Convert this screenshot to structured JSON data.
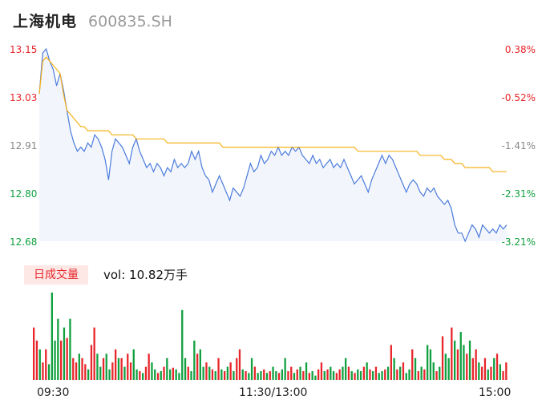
{
  "stock": {
    "name": "上海机电",
    "code": "600835.SH"
  },
  "price_axis": {
    "left_labels": [
      "13.15",
      "13.03",
      "12.91",
      "12.80",
      "12.68"
    ],
    "right_labels": [
      "0.38%",
      "-0.52%",
      "-1.41%",
      "-2.31%",
      "-3.21%"
    ],
    "label_colors": [
      "up",
      "up",
      "flat",
      "down",
      "down"
    ]
  },
  "volume": {
    "tab_label": "日成交量",
    "text": "vol: 10.82万手"
  },
  "time_axis": [
    "09:30",
    "11:30/13:00",
    "15:00"
  ],
  "colors": {
    "price_line": "#4a7bdc",
    "avg_line": "#f5b21b",
    "up": "#e8262b",
    "down": "#11a040",
    "area_fill": "#f2f5fc"
  },
  "chart_data": {
    "type": "line",
    "ylim": [
      12.68,
      13.15
    ],
    "series": [
      {
        "values": [
          13.04,
          13.14,
          13.15,
          13.12,
          13.1,
          13.06,
          13.09,
          13.05,
          13.0,
          12.95,
          12.92,
          12.9,
          12.91,
          12.9,
          12.92,
          12.91,
          12.94,
          12.93,
          12.91,
          12.88,
          12.83,
          12.9,
          12.93,
          12.92,
          12.91,
          12.89,
          12.87,
          12.91,
          12.93,
          12.9,
          12.88,
          12.86,
          12.87,
          12.85,
          12.87,
          12.86,
          12.84,
          12.86,
          12.85,
          12.88,
          12.86,
          12.87,
          12.86,
          12.87,
          12.9,
          12.88,
          12.9,
          12.86,
          12.84,
          12.83,
          12.8,
          12.82,
          12.84,
          12.82,
          12.8,
          12.78,
          12.81,
          12.8,
          12.79,
          12.81,
          12.84,
          12.87,
          12.85,
          12.86,
          12.89,
          12.87,
          12.88,
          12.9,
          12.89,
          12.91,
          12.89,
          12.9,
          12.89,
          12.91,
          12.9,
          12.91,
          12.89,
          12.88,
          12.87,
          12.89,
          12.87,
          12.88,
          12.86,
          12.87,
          12.88,
          12.86,
          12.87,
          12.86,
          12.88,
          12.86,
          12.84,
          12.82,
          12.83,
          12.84,
          12.82,
          12.8,
          12.83,
          12.85,
          12.87,
          12.89,
          12.87,
          12.89,
          12.88,
          12.86,
          12.84,
          12.82,
          12.8,
          12.82,
          12.83,
          12.82,
          12.8,
          12.79,
          12.81,
          12.8,
          12.81,
          12.79,
          12.78,
          12.77,
          12.78,
          12.76,
          12.72,
          12.7,
          12.7,
          12.68,
          12.7,
          12.72,
          12.71,
          12.69,
          12.72,
          12.71,
          12.7,
          12.71,
          12.7,
          12.72,
          12.71,
          12.72
        ]
      },
      {
        "values": [
          13.04,
          13.12,
          13.13,
          13.12,
          13.11,
          13.1,
          13.09,
          13.04,
          13.0,
          12.99,
          12.98,
          12.97,
          12.96,
          12.96,
          12.95,
          12.95,
          12.95,
          12.95,
          12.95,
          12.95,
          12.95,
          12.94,
          12.94,
          12.94,
          12.94,
          12.94,
          12.94,
          12.94,
          12.93,
          12.93,
          12.93,
          12.93,
          12.93,
          12.93,
          12.93,
          12.93,
          12.93,
          12.92,
          12.92,
          12.92,
          12.92,
          12.92,
          12.92,
          12.92,
          12.92,
          12.92,
          12.92,
          12.92,
          12.92,
          12.92,
          12.92,
          12.92,
          12.92,
          12.91,
          12.91,
          12.91,
          12.91,
          12.91,
          12.91,
          12.91,
          12.91,
          12.91,
          12.91,
          12.91,
          12.91,
          12.91,
          12.91,
          12.91,
          12.91,
          12.91,
          12.91,
          12.91,
          12.91,
          12.91,
          12.91,
          12.91,
          12.91,
          12.91,
          12.91,
          12.91,
          12.91,
          12.91,
          12.91,
          12.91,
          12.91,
          12.91,
          12.91,
          12.91,
          12.91,
          12.91,
          12.91,
          12.91,
          12.9,
          12.9,
          12.9,
          12.9,
          12.9,
          12.9,
          12.9,
          12.9,
          12.9,
          12.9,
          12.9,
          12.9,
          12.9,
          12.9,
          12.9,
          12.9,
          12.9,
          12.9,
          12.89,
          12.89,
          12.89,
          12.89,
          12.89,
          12.89,
          12.89,
          12.88,
          12.88,
          12.88,
          12.87,
          12.87,
          12.87,
          12.86,
          12.86,
          12.86,
          12.86,
          12.86,
          12.86,
          12.86,
          12.86,
          12.85,
          12.85,
          12.85,
          12.85,
          12.85
        ]
      }
    ],
    "volume": {
      "values": [
        60,
        45,
        35,
        20,
        35,
        18,
        100,
        45,
        70,
        45,
        60,
        48,
        70,
        25,
        20,
        30,
        25,
        18,
        12,
        40,
        60,
        30,
        15,
        25,
        30,
        12,
        20,
        35,
        25,
        25,
        15,
        30,
        20,
        35,
        12,
        10,
        8,
        15,
        30,
        20,
        12,
        8,
        10,
        15,
        25,
        12,
        14,
        12,
        8,
        80,
        25,
        15,
        10,
        45,
        30,
        35,
        15,
        20,
        15,
        12,
        10,
        25,
        12,
        10,
        15,
        20,
        10,
        25,
        35,
        12,
        10,
        8,
        25,
        15,
        8,
        10,
        12,
        8,
        10,
        15,
        10,
        8,
        12,
        25,
        10,
        15,
        8,
        12,
        15,
        10,
        20,
        8,
        10,
        5,
        12,
        20,
        10,
        12,
        15,
        10,
        8,
        12,
        15,
        25,
        15,
        10,
        8,
        12,
        10,
        15,
        20,
        12,
        10,
        15,
        8,
        10,
        12,
        15,
        40,
        25,
        12,
        15,
        20,
        8,
        12,
        35,
        25,
        10,
        15,
        12,
        40,
        35,
        20,
        10,
        15,
        50,
        30,
        25,
        60,
        45,
        35,
        55,
        40,
        30,
        45,
        25,
        35,
        20,
        15,
        25,
        12,
        15,
        25,
        30,
        18,
        10,
        20
      ],
      "colors": [
        "up",
        "up",
        "down",
        "up",
        "up",
        "down",
        "down",
        "down",
        "down",
        "up",
        "down",
        "up",
        "down",
        "up",
        "up",
        "down",
        "up",
        "up",
        "down",
        "up",
        "up",
        "down",
        "down",
        "up",
        "down",
        "down",
        "up",
        "up",
        "down",
        "up",
        "down",
        "up",
        "up",
        "down",
        "down",
        "up",
        "down",
        "up",
        "up",
        "down",
        "down",
        "up",
        "down",
        "up",
        "down",
        "down",
        "up",
        "down",
        "down",
        "down",
        "down",
        "up",
        "down",
        "down",
        "up",
        "down",
        "down",
        "up",
        "down",
        "up",
        "down",
        "up",
        "down",
        "up",
        "down",
        "up",
        "down",
        "up",
        "up",
        "down",
        "up",
        "down",
        "down",
        "up",
        "down",
        "down",
        "up",
        "down",
        "up",
        "down",
        "down",
        "up",
        "down",
        "down",
        "up",
        "up",
        "down",
        "up",
        "down",
        "up",
        "down",
        "up",
        "down",
        "down",
        "up",
        "up",
        "down",
        "up",
        "down",
        "down",
        "up",
        "up",
        "down",
        "down",
        "up",
        "down",
        "up",
        "down",
        "down",
        "up",
        "down",
        "up",
        "down",
        "up",
        "down",
        "down",
        "up",
        "down",
        "up",
        "down",
        "up",
        "down",
        "up",
        "down",
        "down",
        "up",
        "down",
        "up",
        "down",
        "up",
        "down",
        "down",
        "down",
        "up",
        "down",
        "up",
        "down",
        "down",
        "up",
        "down",
        "up",
        "down",
        "down",
        "up",
        "down",
        "up",
        "up",
        "down",
        "up",
        "up",
        "down",
        "up",
        "down",
        "up",
        "down",
        "up",
        "up",
        "up",
        "down",
        "up",
        "up"
      ]
    }
  }
}
